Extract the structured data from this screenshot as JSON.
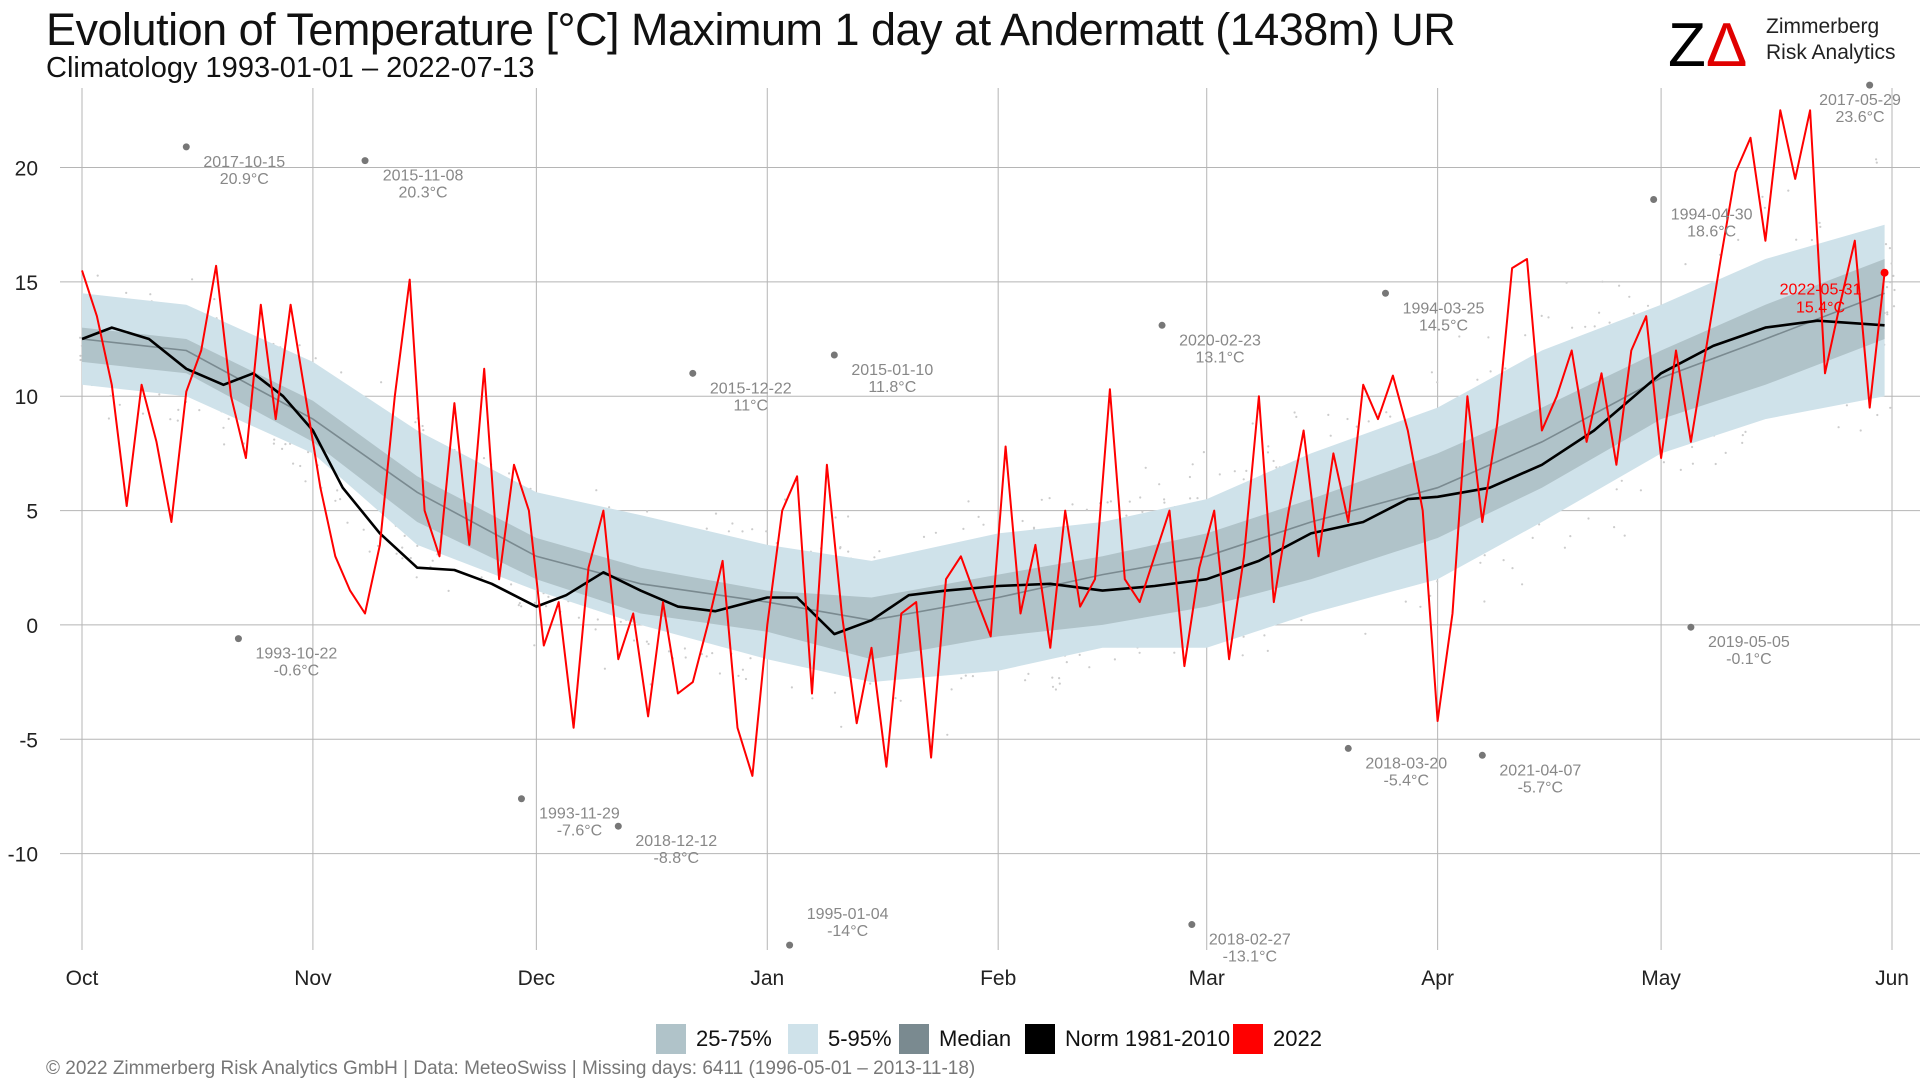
{
  "header": {
    "title": "Evolution of Temperature [°C] Maximum 1 day at Andermatt (1438m) UR",
    "subtitle": "Climatology 1993-01-01 – 2022-07-13"
  },
  "logo": {
    "mark": "ZΔ",
    "line1": "Zimmerberg",
    "line2": "Risk Analytics",
    "mark_color": "#000000",
    "accent_color": "#e00000"
  },
  "footer": {
    "text": "©  2022 Zimmerberg Risk Analytics GmbH | Data: MeteoSwiss | Missing days: 6411 (1996-05-01 – 2013-11-18)"
  },
  "legend": [
    {
      "label": "25-75%",
      "color": "#b0c3c9"
    },
    {
      "label": "5-95%",
      "color": "#cfe2ea"
    },
    {
      "label": "Median",
      "color": "#7a8a90"
    },
    {
      "label": "Norm 1981-2010",
      "color": "#000000"
    },
    {
      "label": "2022",
      "color": "#ff0000"
    }
  ],
  "chart_data": {
    "type": "line",
    "x_axis": {
      "type": "date",
      "range": [
        "2021-10-01",
        "2022-06-01"
      ],
      "ticks": [
        {
          "date": "2021-10-01",
          "label": "Oct"
        },
        {
          "date": "2021-11-01",
          "label": "Nov"
        },
        {
          "date": "2021-12-01",
          "label": "Dec"
        },
        {
          "date": "2022-01-01",
          "label": "Jan"
        },
        {
          "date": "2022-02-01",
          "label": "Feb"
        },
        {
          "date": "2022-03-01",
          "label": "Mar"
        },
        {
          "date": "2022-04-01",
          "label": "Apr"
        },
        {
          "date": "2022-05-01",
          "label": "May"
        },
        {
          "date": "2022-06-01",
          "label": "Jun"
        }
      ]
    },
    "y_axis": {
      "ylim": [
        -15,
        24
      ],
      "ticks": [
        -10,
        -5,
        0,
        5,
        10,
        15,
        20
      ]
    },
    "grid": true,
    "legend_position": "bottom",
    "colors": {
      "band_5_95": "#cfe2ea",
      "band_25_75": "#b0c3c9",
      "median": "#7a8a90",
      "norm": "#000000",
      "year": "#ff0000",
      "records": "#777777",
      "scatter": "#cccccc"
    },
    "climatology": {
      "dates": [
        "2021-10-01",
        "2021-10-15",
        "2021-11-01",
        "2021-11-15",
        "2021-12-01",
        "2021-12-15",
        "2022-01-01",
        "2022-01-15",
        "2022-02-01",
        "2022-02-15",
        "2022-03-01",
        "2022-03-15",
        "2022-04-01",
        "2022-04-15",
        "2022-05-01",
        "2022-05-15",
        "2022-05-31"
      ],
      "p05": [
        10.5,
        10.0,
        7.5,
        3.5,
        1.5,
        0.0,
        -1.5,
        -2.5,
        -2.0,
        -1.0,
        -1.0,
        0.5,
        2.0,
        4.5,
        7.5,
        9.0,
        10.0
      ],
      "p25": [
        11.5,
        11.0,
        8.0,
        4.5,
        2.0,
        0.5,
        -0.3,
        -1.5,
        -0.5,
        0.0,
        0.8,
        2.0,
        3.8,
        6.0,
        9.0,
        10.5,
        12.5
      ],
      "median": [
        12.5,
        12.0,
        9.0,
        5.8,
        3.0,
        1.8,
        1.0,
        0.2,
        1.2,
        2.2,
        3.0,
        4.5,
        6.0,
        8.0,
        10.8,
        12.5,
        14.5
      ],
      "p75": [
        13.0,
        12.5,
        9.8,
        6.5,
        3.8,
        2.5,
        1.5,
        1.2,
        2.2,
        3.0,
        4.0,
        5.5,
        7.5,
        9.5,
        12.0,
        14.0,
        16.0
      ],
      "p95": [
        14.5,
        14.0,
        11.5,
        8.5,
        5.8,
        4.8,
        3.5,
        2.8,
        4.0,
        4.5,
        5.5,
        7.5,
        9.5,
        12.0,
        14.0,
        16.0,
        17.5
      ]
    },
    "series": [
      {
        "name": "Norm 1981-2010",
        "dates": [
          "2021-10-01",
          "2021-10-05",
          "2021-10-10",
          "2021-10-15",
          "2021-10-20",
          "2021-10-24",
          "2021-10-28",
          "2021-11-01",
          "2021-11-05",
          "2021-11-10",
          "2021-11-15",
          "2021-11-20",
          "2021-11-25",
          "2021-12-01",
          "2021-12-05",
          "2021-12-10",
          "2021-12-15",
          "2021-12-20",
          "2021-12-25",
          "2022-01-01",
          "2022-01-05",
          "2022-01-10",
          "2022-01-15",
          "2022-01-20",
          "2022-01-25",
          "2022-02-01",
          "2022-02-08",
          "2022-02-15",
          "2022-02-22",
          "2022-03-01",
          "2022-03-08",
          "2022-03-15",
          "2022-03-22",
          "2022-03-28",
          "2022-04-01",
          "2022-04-08",
          "2022-04-15",
          "2022-04-22",
          "2022-05-01",
          "2022-05-08",
          "2022-05-15",
          "2022-05-22",
          "2022-05-31"
        ],
        "values": [
          12.5,
          13.0,
          12.5,
          11.2,
          10.5,
          11.0,
          10.0,
          8.5,
          6.0,
          4.0,
          2.5,
          2.4,
          1.8,
          0.8,
          1.3,
          2.3,
          1.5,
          0.8,
          0.6,
          1.2,
          1.2,
          -0.4,
          0.2,
          1.3,
          1.5,
          1.7,
          1.8,
          1.5,
          1.7,
          2.0,
          2.8,
          4.0,
          4.5,
          5.5,
          5.6,
          6.0,
          7.0,
          8.5,
          11.0,
          12.2,
          13.0,
          13.3,
          13.1
        ]
      },
      {
        "name": "2022",
        "dates": [
          "2021-10-01",
          "2021-10-03",
          "2021-10-05",
          "2021-10-07",
          "2021-10-09",
          "2021-10-11",
          "2021-10-13",
          "2021-10-15",
          "2021-10-17",
          "2021-10-19",
          "2021-10-21",
          "2021-10-23",
          "2021-10-25",
          "2021-10-27",
          "2021-10-29",
          "2021-10-31",
          "2021-11-02",
          "2021-11-04",
          "2021-11-06",
          "2021-11-08",
          "2021-11-10",
          "2021-11-12",
          "2021-11-14",
          "2021-11-16",
          "2021-11-18",
          "2021-11-20",
          "2021-11-22",
          "2021-11-24",
          "2021-11-26",
          "2021-11-28",
          "2021-11-30",
          "2021-12-02",
          "2021-12-04",
          "2021-12-06",
          "2021-12-08",
          "2021-12-10",
          "2021-12-12",
          "2021-12-14",
          "2021-12-16",
          "2021-12-18",
          "2021-12-20",
          "2021-12-22",
          "2021-12-24",
          "2021-12-26",
          "2021-12-28",
          "2021-12-30",
          "2022-01-01",
          "2022-01-03",
          "2022-01-05",
          "2022-01-07",
          "2022-01-09",
          "2022-01-11",
          "2022-01-13",
          "2022-01-15",
          "2022-01-17",
          "2022-01-19",
          "2022-01-21",
          "2022-01-23",
          "2022-01-25",
          "2022-01-27",
          "2022-01-29",
          "2022-01-31",
          "2022-02-02",
          "2022-02-04",
          "2022-02-06",
          "2022-02-08",
          "2022-02-10",
          "2022-02-12",
          "2022-02-14",
          "2022-02-16",
          "2022-02-18",
          "2022-02-20",
          "2022-02-22",
          "2022-02-24",
          "2022-02-26",
          "2022-02-28",
          "2022-03-02",
          "2022-03-04",
          "2022-03-06",
          "2022-03-08",
          "2022-03-10",
          "2022-03-12",
          "2022-03-14",
          "2022-03-16",
          "2022-03-18",
          "2022-03-20",
          "2022-03-22",
          "2022-03-24",
          "2022-03-26",
          "2022-03-28",
          "2022-03-30",
          "2022-04-01",
          "2022-04-03",
          "2022-04-05",
          "2022-04-07",
          "2022-04-09",
          "2022-04-11",
          "2022-04-13",
          "2022-04-15",
          "2022-04-17",
          "2022-04-19",
          "2022-04-21",
          "2022-04-23",
          "2022-04-25",
          "2022-04-27",
          "2022-04-29",
          "2022-05-01",
          "2022-05-03",
          "2022-05-05",
          "2022-05-07",
          "2022-05-09",
          "2022-05-11",
          "2022-05-13",
          "2022-05-15",
          "2022-05-17",
          "2022-05-19",
          "2022-05-21",
          "2022-05-23",
          "2022-05-25",
          "2022-05-27",
          "2022-05-29",
          "2022-05-31"
        ],
        "values": [
          15.5,
          13.5,
          10.5,
          5.2,
          10.5,
          8.0,
          4.5,
          10.2,
          12.0,
          15.7,
          10.0,
          7.3,
          14.0,
          9.0,
          14.0,
          10.0,
          6.0,
          3.0,
          1.5,
          0.5,
          3.5,
          10.0,
          15.1,
          5.0,
          3.0,
          9.7,
          3.5,
          11.2,
          2.0,
          7.0,
          5.0,
          -0.9,
          1.0,
          -4.5,
          2.5,
          5.0,
          -1.5,
          0.5,
          -4.0,
          1.0,
          -3.0,
          -2.5,
          0.0,
          2.8,
          -4.5,
          -6.6,
          0.0,
          5.0,
          6.5,
          -3.0,
          7.0,
          0.5,
          -4.3,
          -1.0,
          -6.2,
          0.5,
          1.0,
          -5.8,
          2.0,
          3.0,
          1.2,
          -0.5,
          7.8,
          0.5,
          3.5,
          -1.0,
          5.0,
          0.8,
          2.0,
          10.3,
          2.0,
          1.0,
          3.0,
          5.0,
          -1.8,
          2.5,
          5.0,
          -1.5,
          3.0,
          10.0,
          1.0,
          5.0,
          8.5,
          3.0,
          7.5,
          4.5,
          10.5,
          9.0,
          10.9,
          8.5,
          5.0,
          -4.2,
          0.5,
          10.0,
          4.5,
          8.8,
          15.6,
          16.0,
          8.5,
          10.0,
          12.0,
          8.0,
          11.0,
          7.0,
          12.0,
          13.5,
          7.3,
          12.0,
          8.0,
          12.0,
          16.0,
          19.8,
          21.3,
          16.8,
          22.5,
          19.5,
          22.5,
          11.0,
          14.0,
          16.8,
          9.5,
          15.4
        ]
      }
    ],
    "records": [
      {
        "date": "2021-10-15",
        "value": 20.9,
        "label": "2017-10-15",
        "value_label": "20.9°C"
      },
      {
        "date": "2021-10-22",
        "value": -0.6,
        "label": "1993-10-22",
        "value_label": "-0.6°C"
      },
      {
        "date": "2021-11-08",
        "value": 20.3,
        "label": "2015-11-08",
        "value_label": "20.3°C"
      },
      {
        "date": "2021-11-29",
        "value": -7.6,
        "label": "1993-11-29",
        "value_label": "-7.6°C"
      },
      {
        "date": "2021-12-12",
        "value": -8.8,
        "label": "2018-12-12",
        "value_label": "-8.8°C"
      },
      {
        "date": "2021-12-22",
        "value": 11.0,
        "label": "2015-12-22",
        "value_label": "11°C"
      },
      {
        "date": "2022-01-04",
        "value": -14.0,
        "label": "1995-01-04",
        "value_label": "-14°C"
      },
      {
        "date": "2022-01-10",
        "value": 11.8,
        "label": "2015-01-10",
        "value_label": "11.8°C"
      },
      {
        "date": "2022-02-23",
        "value": 13.1,
        "label": "2020-02-23",
        "value_label": "13.1°C"
      },
      {
        "date": "2022-02-27",
        "value": -13.1,
        "label": "2018-02-27",
        "value_label": "-13.1°C"
      },
      {
        "date": "2022-03-20",
        "value": -5.4,
        "label": "2018-03-20",
        "value_label": "-5.4°C"
      },
      {
        "date": "2022-03-25",
        "value": 14.5,
        "label": "1994-03-25",
        "value_label": "14.5°C"
      },
      {
        "date": "2022-04-07",
        "value": -5.7,
        "label": "2021-04-07",
        "value_label": "-5.7°C"
      },
      {
        "date": "2022-04-30",
        "value": 18.6,
        "label": "1994-04-30",
        "value_label": "18.6°C"
      },
      {
        "date": "2022-05-05",
        "value": -0.1,
        "label": "2019-05-05",
        "value_label": "-0.1°C"
      },
      {
        "date": "2022-05-29",
        "value": 23.6,
        "label": "2017-05-29",
        "value_label": "23.6°C"
      }
    ],
    "last_value": {
      "date": "2022-05-31",
      "value": 15.4,
      "label": "2022-05-31",
      "value_label": "15.4°C"
    }
  }
}
